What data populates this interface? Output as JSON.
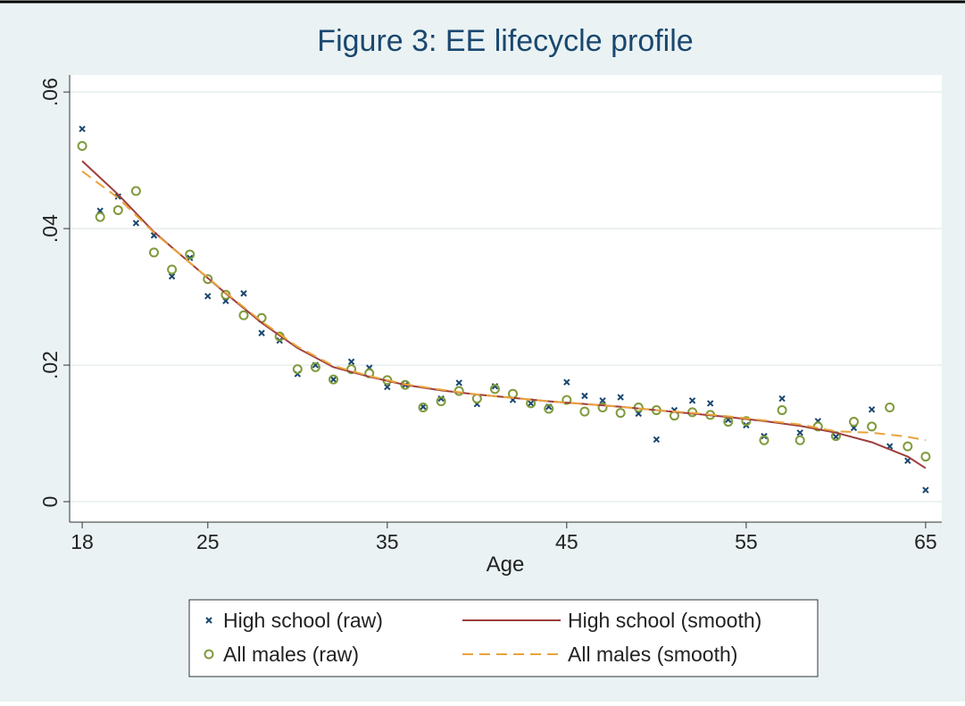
{
  "chart_data": {
    "type": "scatter",
    "title": "Figure 3: EE lifecycle profile",
    "x_label": "Age",
    "xlim": [
      17.3,
      65.9
    ],
    "xticks": [
      18,
      25,
      35,
      45,
      55,
      65
    ],
    "ylim": [
      -0.003,
      0.0625
    ],
    "yticks": [
      0,
      {
        "value": 0.02,
        "label": ".02"
      },
      {
        "value": 0.04,
        "label": ".04"
      },
      {
        "value": 0.06,
        "label": ".06"
      }
    ],
    "grid": true,
    "legend": "bottom",
    "series": [
      {
        "name": "High school (raw)",
        "color": "#1a476f",
        "marker": "x",
        "x": [
          18,
          19,
          20,
          21,
          22,
          23,
          24,
          25,
          26,
          27,
          28,
          29,
          30,
          31,
          32,
          33,
          34,
          35,
          36,
          37,
          38,
          39,
          40,
          41,
          42,
          43,
          44,
          45,
          46,
          47,
          48,
          49,
          50,
          51,
          52,
          53,
          54,
          55,
          56,
          57,
          58,
          59,
          60,
          61,
          62,
          63,
          64,
          65
        ],
        "values": [
          0.0546,
          0.0426,
          0.0447,
          0.0408,
          0.039,
          0.033,
          0.0357,
          0.0301,
          0.0294,
          0.0305,
          0.0247,
          0.0236,
          0.0187,
          0.02,
          0.0179,
          0.0205,
          0.0196,
          0.0168,
          0.0171,
          0.0139,
          0.0151,
          0.0174,
          0.0143,
          0.0169,
          0.0149,
          0.0144,
          0.0139,
          0.0175,
          0.0155,
          0.0148,
          0.0153,
          0.0129,
          0.0091,
          0.0134,
          0.0148,
          0.0144,
          0.012,
          0.0112,
          0.0096,
          0.0151,
          0.0101,
          0.0118,
          0.0095,
          0.0108,
          0.0135,
          0.0081,
          0.006,
          0.0017
        ]
      },
      {
        "name": "All males (raw)",
        "color": "#7f9a3a",
        "marker": "circle",
        "x": [
          18,
          19,
          20,
          21,
          22,
          23,
          24,
          25,
          26,
          27,
          28,
          29,
          30,
          31,
          32,
          33,
          34,
          35,
          36,
          37,
          38,
          39,
          40,
          41,
          42,
          43,
          44,
          45,
          46,
          47,
          48,
          49,
          50,
          51,
          52,
          53,
          54,
          55,
          56,
          57,
          58,
          59,
          60,
          61,
          62,
          63,
          64,
          65
        ],
        "values": [
          0.0521,
          0.0417,
          0.0427,
          0.0455,
          0.0365,
          0.034,
          0.0362,
          0.0326,
          0.0303,
          0.0273,
          0.0269,
          0.0242,
          0.0194,
          0.0197,
          0.0179,
          0.0194,
          0.0188,
          0.0178,
          0.0171,
          0.0138,
          0.0147,
          0.0162,
          0.0151,
          0.0165,
          0.0158,
          0.0144,
          0.0136,
          0.0149,
          0.0132,
          0.0138,
          0.013,
          0.0138,
          0.0134,
          0.0126,
          0.0131,
          0.0127,
          0.0117,
          0.0118,
          0.009,
          0.0134,
          0.009,
          0.011,
          0.0096,
          0.0117,
          0.011,
          0.0138,
          0.0081,
          0.0066
        ]
      },
      {
        "name": "High school (smooth)",
        "color": "#9e3d3d",
        "marker": "line",
        "x": [
          18,
          20,
          22,
          24,
          26,
          28,
          30,
          32,
          34,
          36,
          38,
          40,
          42,
          44,
          46,
          48,
          50,
          52,
          54,
          56,
          58,
          60,
          62,
          64,
          65
        ],
        "values": [
          0.0499,
          0.045,
          0.0395,
          0.035,
          0.0305,
          0.0262,
          0.0225,
          0.0197,
          0.0183,
          0.0171,
          0.0163,
          0.0157,
          0.0152,
          0.0147,
          0.0143,
          0.0139,
          0.0134,
          0.0129,
          0.0124,
          0.0118,
          0.0111,
          0.0101,
          0.0087,
          0.0066,
          0.0049
        ]
      },
      {
        "name": "All males (smooth)",
        "color": "#e8a33c",
        "marker": "dash",
        "x": [
          18,
          20,
          22,
          24,
          26,
          28,
          30,
          32,
          34,
          36,
          38,
          40,
          42,
          44,
          46,
          48,
          50,
          52,
          54,
          56,
          58,
          60,
          62,
          64,
          65
        ],
        "values": [
          0.0484,
          0.0445,
          0.0394,
          0.035,
          0.0306,
          0.0264,
          0.0227,
          0.0199,
          0.0184,
          0.0172,
          0.0164,
          0.0157,
          0.0152,
          0.0147,
          0.0143,
          0.0139,
          0.0134,
          0.013,
          0.0125,
          0.0119,
          0.0113,
          0.0103,
          0.0101,
          0.0095,
          0.009
        ]
      }
    ]
  }
}
